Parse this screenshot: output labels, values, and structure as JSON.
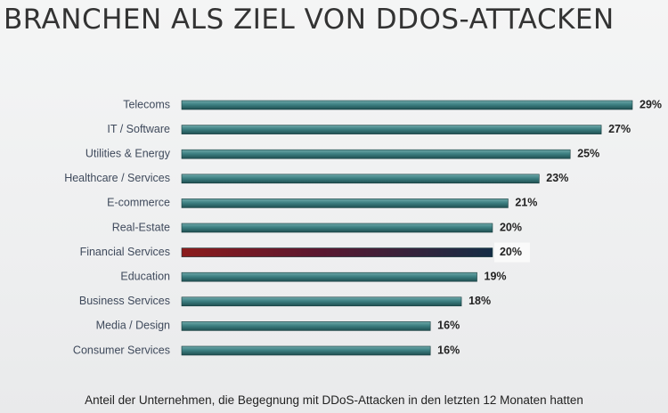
{
  "title": "BRANCHEN ALS ZIEL VON DDOS-ATTACKEN",
  "caption": "Anteil der Unternehmen, die Begegnung mit DDoS-Attacken in den letzten 12 Monaten hatten",
  "colors": {
    "bar": "#3d8082",
    "highlight": "#8b1c1c",
    "category_text": "#3f4a5c",
    "value_text": "#222222"
  },
  "chart_data": {
    "type": "bar",
    "orientation": "horizontal",
    "title": "BRANCHEN ALS ZIEL VON DDOS-ATTACKEN",
    "xlabel": "",
    "ylabel": "",
    "xlim": [
      0,
      29
    ],
    "grid": false,
    "legend": "none",
    "categories": [
      "Telecoms",
      "IT / Software",
      "Utilities & Energy",
      "Healthcare / Services",
      "E-commerce",
      "Real-Estate",
      "Financial Services",
      "Education",
      "Business Services",
      "Media / Design",
      "Consumer Services"
    ],
    "values": [
      29,
      27,
      25,
      23,
      21,
      20,
      20,
      19,
      18,
      16,
      16
    ],
    "value_labels": [
      "29%",
      "27%",
      "25%",
      "23%",
      "21%",
      "20%",
      "20%",
      "19%",
      "18%",
      "16%",
      "16%"
    ],
    "highlighted_category": "Financial Services"
  }
}
